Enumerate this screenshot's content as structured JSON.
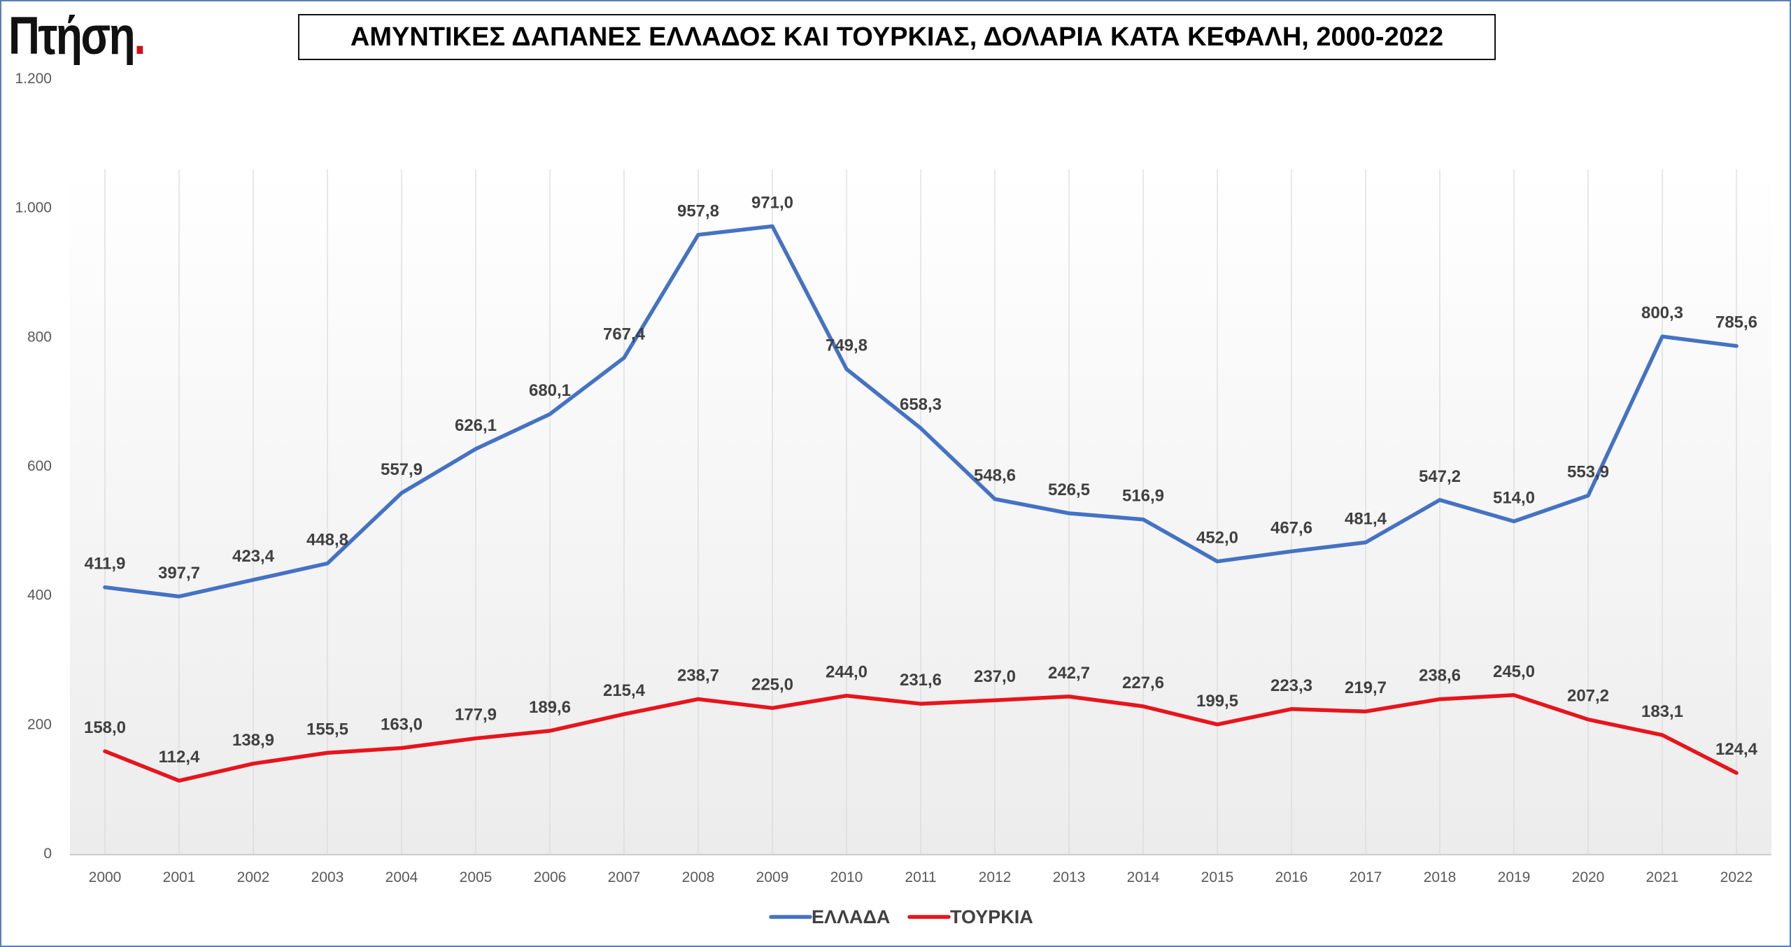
{
  "logo": {
    "text": "Πτήση",
    "dot": "."
  },
  "chart_data": {
    "type": "line",
    "title": "ΑΜΥΝΤΙΚΕΣ ΔΑΠΑΝΕΣ ΕΛΛΑΔΟΣ ΚΑΙ ΤΟΥΡΚΙΑΣ, ΔΟΛΑΡΙΑ ΚΑΤΑ ΚΕΦΑΛΗ, 2000-2022",
    "xlabel": "",
    "ylabel": "",
    "ylim": [
      0,
      1200
    ],
    "yticks": [
      0,
      200,
      400,
      600,
      800,
      1000,
      1200
    ],
    "ytick_labels": [
      "0",
      "200",
      "400",
      "600",
      "800",
      "1.000",
      "1.200"
    ],
    "categories": [
      "2000",
      "2001",
      "2002",
      "2003",
      "2004",
      "2005",
      "2006",
      "2007",
      "2008",
      "2009",
      "2010",
      "2011",
      "2012",
      "2013",
      "2014",
      "2015",
      "2016",
      "2017",
      "2018",
      "2019",
      "2020",
      "2021",
      "2022"
    ],
    "grid": "vertical",
    "legend": "bottom-center",
    "series": [
      {
        "name": "ΕΛΛΑΔΑ",
        "color": "#4472c4",
        "values": [
          411.9,
          397.7,
          423.4,
          448.8,
          557.9,
          626.1,
          680.1,
          767.4,
          957.8,
          971.0,
          749.8,
          658.3,
          548.6,
          526.5,
          516.9,
          452.0,
          467.6,
          481.4,
          547.2,
          514.0,
          553.9,
          800.3,
          785.6
        ],
        "labels": [
          "411,9",
          "397,7",
          "423,4",
          "448,8",
          "557,9",
          "626,1",
          "680,1",
          "767,4",
          "957,8",
          "971,0",
          "749,8",
          "658,3",
          "548,6",
          "526,5",
          "516,9",
          "452,0",
          "467,6",
          "481,4",
          "547,2",
          "514,0",
          "553,9",
          "800,3",
          "785,6"
        ]
      },
      {
        "name": "ΤΟΥΡΚΙΑ",
        "color": "#e8141c",
        "values": [
          158.0,
          112.4,
          138.9,
          155.5,
          163.0,
          177.9,
          189.6,
          215.4,
          238.7,
          225.0,
          244.0,
          231.6,
          237.0,
          242.7,
          227.6,
          199.5,
          223.3,
          219.7,
          238.6,
          245.0,
          207.2,
          183.1,
          124.4
        ],
        "labels": [
          "158,0",
          "112,4",
          "138,9",
          "155,5",
          "163,0",
          "177,9",
          "189,6",
          "215,4",
          "238,7",
          "225,0",
          "244,0",
          "231,6",
          "237,0",
          "242,7",
          "227,6",
          "199,5",
          "223,3",
          "219,7",
          "238,6",
          "245,0",
          "207,2",
          "183,1",
          "124,4"
        ]
      }
    ]
  }
}
